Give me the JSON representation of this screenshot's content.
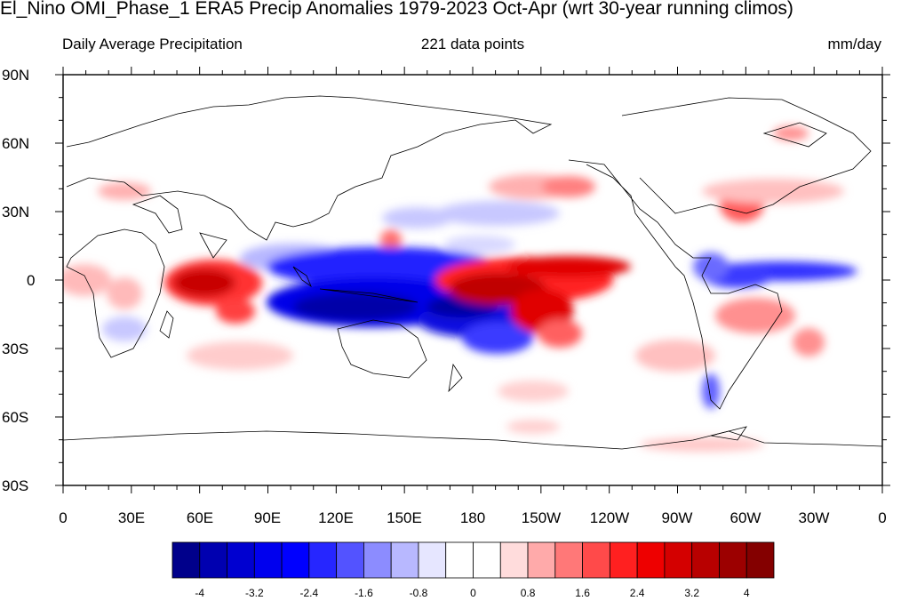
{
  "title": "El_Nino OMI_Phase_1 ERA5 Precip Anomalies 1979-2023 Oct-Apr (wrt 30-year running climos)",
  "subtitle_left": "Daily Average Precipitation",
  "subtitle_center": "221 data points",
  "subtitle_right": "mm/day",
  "lat_labels": [
    "90N",
    "60N",
    "30N",
    "0",
    "30S",
    "60S",
    "90S"
  ],
  "lon_labels": [
    "0",
    "30E",
    "60E",
    "90E",
    "120E",
    "150E",
    "180",
    "150W",
    "120W",
    "90W",
    "60W",
    "30W",
    "0"
  ],
  "colorbar": {
    "colors": [
      "#00008b",
      "#0000b0",
      "#0000d0",
      "#0000ee",
      "#0000ff",
      "#2626ff",
      "#5353ff",
      "#8c8cff",
      "#b8b8ff",
      "#e6e6ff",
      "#ffffff",
      "#ffffff",
      "#ffdcdc",
      "#ffaaaa",
      "#ff7878",
      "#ff4a4a",
      "#ff2020",
      "#ee0000",
      "#d40000",
      "#b80000",
      "#9c0000",
      "#840000"
    ],
    "tick_labels": [
      "-4",
      "-3.2",
      "-2.4",
      "-1.6",
      "-0.8",
      "0",
      "0.8",
      "1.6",
      "2.4",
      "3.2",
      "4"
    ]
  }
}
